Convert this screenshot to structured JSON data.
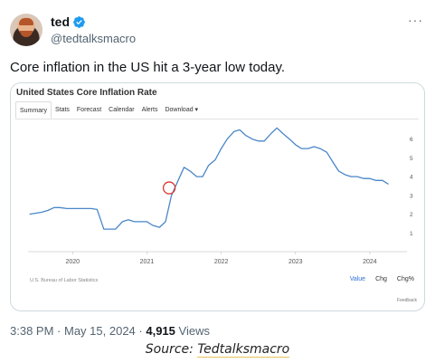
{
  "user": {
    "name": "ted",
    "handle": "@tedtalksmacro",
    "verified_color": "#1d9bf0"
  },
  "tweet": {
    "text": "Core inflation in the US hit a 3-year low today.",
    "time": "3:38 PM",
    "date": "May 15, 2024",
    "views_count": "4,915",
    "views_label": "Views"
  },
  "card": {
    "title": "United States Core Inflation Rate",
    "tabs": [
      "Summary",
      "Stats",
      "Forecast",
      "Calendar",
      "Alerts",
      "Download ▾"
    ],
    "active_tab": "Summary",
    "source_note": "U.S. Bureau of Labor Statistics",
    "buttons": [
      "Value",
      "Chg",
      "Chg%"
    ],
    "active_button": "Value",
    "feedback": "Feedback"
  },
  "chart_data": {
    "type": "line",
    "title": "United States Core Inflation Rate",
    "x_ticks": [
      "2020",
      "2021",
      "2022",
      "2023",
      "2024"
    ],
    "y_ticks": [
      "1",
      "2",
      "3",
      "4",
      "5",
      "6"
    ],
    "ylim": [
      0,
      7
    ],
    "xlim": [
      2019.4,
      2024.5
    ],
    "grid": false,
    "line_color": "#4a86c8",
    "series": [
      {
        "x": [
          2019.42,
          2019.58,
          2019.67,
          2019.75,
          2019.83,
          2019.92,
          2020.0,
          2020.08,
          2020.17,
          2020.25,
          2020.33,
          2020.42,
          2020.5,
          2020.58,
          2020.67,
          2020.75,
          2020.83,
          2020.92,
          2021.0,
          2021.08,
          2021.17,
          2021.25,
          2021.33,
          2021.42,
          2021.5,
          2021.58,
          2021.67,
          2021.75,
          2021.83,
          2021.92,
          2022.0,
          2022.08,
          2022.17,
          2022.25,
          2022.33,
          2022.42,
          2022.5,
          2022.58,
          2022.67,
          2022.75,
          2022.83,
          2022.92,
          2023.0,
          2023.08,
          2023.17,
          2023.25,
          2023.33,
          2023.42,
          2023.5,
          2023.58,
          2023.67,
          2023.75,
          2023.83,
          2023.92,
          2024.0,
          2024.08,
          2024.17,
          2024.25
        ],
        "values": [
          2.0,
          2.1,
          2.2,
          2.35,
          2.35,
          2.3,
          2.3,
          2.3,
          2.3,
          2.3,
          2.25,
          1.2,
          1.2,
          1.2,
          1.6,
          1.7,
          1.6,
          1.6,
          1.6,
          1.4,
          1.3,
          1.6,
          3.0,
          3.8,
          4.5,
          4.3,
          4.0,
          4.0,
          4.6,
          4.9,
          5.5,
          6.0,
          6.4,
          6.5,
          6.2,
          6.0,
          5.9,
          5.9,
          6.3,
          6.6,
          6.3,
          6.0,
          5.7,
          5.5,
          5.5,
          5.6,
          5.5,
          5.3,
          4.8,
          4.3,
          4.1,
          4.0,
          4.0,
          3.9,
          3.9,
          3.8,
          3.8,
          3.6
        ]
      }
    ],
    "annotations": [
      {
        "shape": "circle",
        "x": 2021.3,
        "y": 3.4,
        "color": "#d9352b"
      }
    ]
  },
  "source_line": {
    "prefix": "Source: ",
    "name": "Tedtalksmacro"
  }
}
